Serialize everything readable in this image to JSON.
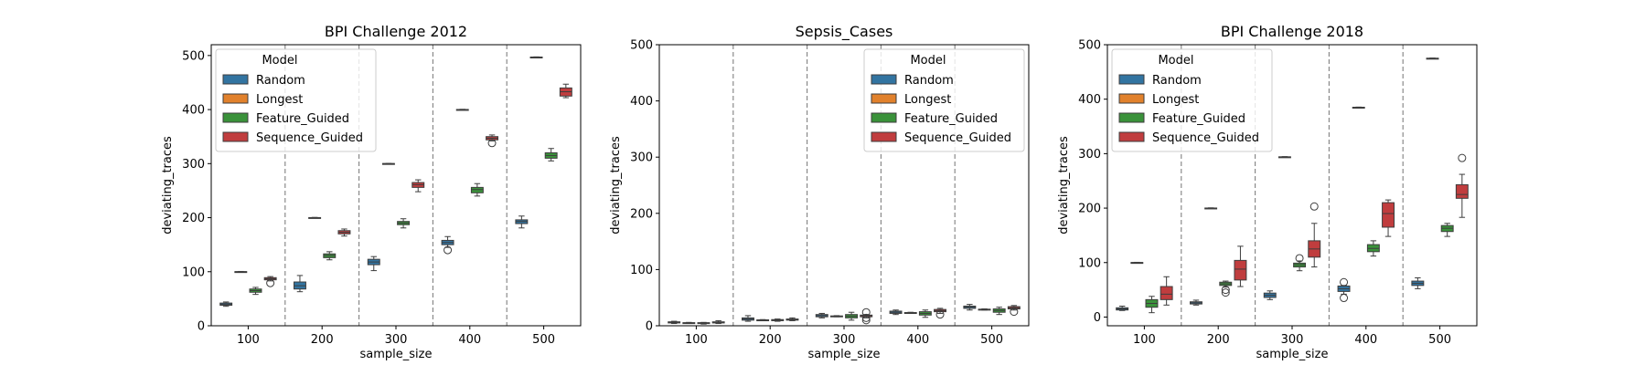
{
  "chart_data": [
    {
      "type": "boxplot",
      "title": "BPI Challenge 2012",
      "xlabel": "sample_size",
      "ylabel": "deviating_traces",
      "categories": [
        "100",
        "200",
        "300",
        "400",
        "500"
      ],
      "ylim": [
        0,
        520
      ],
      "yticks": [
        0,
        100,
        200,
        300,
        400,
        500
      ],
      "legend": {
        "title": "Model",
        "position": "upper-left"
      },
      "series": [
        {
          "name": "Random",
          "color": "#3274a1",
          "boxes": [
            {
              "whislo": 36,
              "q1": 38,
              "med": 40,
              "q3": 42,
              "whishi": 44,
              "outliers": []
            },
            {
              "whislo": 63,
              "q1": 68,
              "med": 74,
              "q3": 81,
              "whishi": 93,
              "outliers": []
            },
            {
              "whislo": 102,
              "q1": 113,
              "med": 118,
              "q3": 123,
              "whishi": 128,
              "outliers": []
            },
            {
              "whislo": 145,
              "q1": 150,
              "med": 154,
              "q3": 158,
              "whishi": 165,
              "outliers": [
                140
              ]
            },
            {
              "whislo": 181,
              "q1": 189,
              "med": 193,
              "q3": 196,
              "whishi": 203,
              "outliers": []
            }
          ]
        },
        {
          "name": "Longest",
          "color": "#e1812c",
          "boxes": [
            {
              "whislo": 99.5,
              "q1": 99.8,
              "med": 100,
              "q3": 100.2,
              "whishi": 100.5,
              "outliers": []
            },
            {
              "whislo": 199.5,
              "q1": 199.8,
              "med": 200,
              "q3": 200.2,
              "whishi": 200.5,
              "outliers": []
            },
            {
              "whislo": 299.5,
              "q1": 299.8,
              "med": 300,
              "q3": 300.2,
              "whishi": 300.5,
              "outliers": []
            },
            {
              "whislo": 399.5,
              "q1": 399.8,
              "med": 400,
              "q3": 400.2,
              "whishi": 400.5,
              "outliers": []
            },
            {
              "whislo": 496.5,
              "q1": 496.8,
              "med": 497,
              "q3": 497.2,
              "whishi": 497.5,
              "outliers": []
            }
          ]
        },
        {
          "name": "Feature_Guided",
          "color": "#3a923a",
          "boxes": [
            {
              "whislo": 58,
              "q1": 62,
              "med": 65,
              "q3": 68,
              "whishi": 71,
              "outliers": []
            },
            {
              "whislo": 122,
              "q1": 126,
              "med": 130,
              "q3": 133,
              "whishi": 137,
              "outliers": []
            },
            {
              "whislo": 181,
              "q1": 187,
              "med": 190,
              "q3": 193,
              "whishi": 198,
              "outliers": []
            },
            {
              "whislo": 240,
              "q1": 246,
              "med": 252,
              "q3": 256,
              "whishi": 263,
              "outliers": []
            },
            {
              "whislo": 305,
              "q1": 310,
              "med": 315,
              "q3": 320,
              "whishi": 328,
              "outliers": []
            }
          ]
        },
        {
          "name": "Sequence_Guided",
          "color": "#c03d3e",
          "boxes": [
            {
              "whislo": 83,
              "q1": 85,
              "med": 87,
              "q3": 89,
              "whishi": 91,
              "outliers": [
                79
              ]
            },
            {
              "whislo": 166,
              "q1": 170,
              "med": 173,
              "q3": 176,
              "whishi": 179,
              "outliers": []
            },
            {
              "whislo": 248,
              "q1": 256,
              "med": 261,
              "q3": 265,
              "whishi": 270,
              "outliers": []
            },
            {
              "whislo": 342,
              "q1": 344,
              "med": 347,
              "q3": 350,
              "whishi": 353,
              "outliers": [
                338
              ]
            },
            {
              "whislo": 422,
              "q1": 425,
              "med": 433,
              "q3": 440,
              "whishi": 447,
              "outliers": []
            }
          ]
        }
      ]
    },
    {
      "type": "boxplot",
      "title": "Sepsis_Cases",
      "xlabel": "sample_size",
      "ylabel": "deviating_traces",
      "categories": [
        "100",
        "200",
        "300",
        "400",
        "500"
      ],
      "ylim": [
        0,
        500
      ],
      "yticks": [
        0,
        100,
        200,
        300,
        400,
        500
      ],
      "legend": {
        "title": "Model",
        "position": "upper-right"
      },
      "series": [
        {
          "name": "Random",
          "color": "#3274a1",
          "boxes": [
            {
              "whislo": 4,
              "q1": 5,
              "med": 6,
              "q3": 7,
              "whishi": 8,
              "outliers": []
            },
            {
              "whislo": 8,
              "q1": 10,
              "med": 12,
              "q3": 14,
              "whishi": 18,
              "outliers": []
            },
            {
              "whislo": 14,
              "q1": 16,
              "med": 18,
              "q3": 20,
              "whishi": 22,
              "outliers": []
            },
            {
              "whislo": 20,
              "q1": 22,
              "med": 24,
              "q3": 26,
              "whishi": 28,
              "outliers": []
            },
            {
              "whislo": 28,
              "q1": 31,
              "med": 33,
              "q3": 35,
              "whishi": 38,
              "outliers": []
            }
          ]
        },
        {
          "name": "Longest",
          "color": "#e1812c",
          "boxes": [
            {
              "whislo": 4,
              "q1": 4.5,
              "med": 5,
              "q3": 5.5,
              "whishi": 6,
              "outliers": []
            },
            {
              "whislo": 9,
              "q1": 9.5,
              "med": 10,
              "q3": 10.5,
              "whishi": 11,
              "outliers": []
            },
            {
              "whislo": 16,
              "q1": 16.5,
              "med": 17,
              "q3": 17.5,
              "whishi": 18,
              "outliers": []
            },
            {
              "whislo": 22,
              "q1": 22.5,
              "med": 23,
              "q3": 23.5,
              "whishi": 24,
              "outliers": []
            },
            {
              "whislo": 28,
              "q1": 28.5,
              "med": 29,
              "q3": 29.5,
              "whishi": 30,
              "outliers": []
            }
          ]
        },
        {
          "name": "Feature_Guided",
          "color": "#3a923a",
          "boxes": [
            {
              "whislo": 3,
              "q1": 4,
              "med": 5,
              "q3": 5.5,
              "whishi": 6,
              "outliers": []
            },
            {
              "whislo": 8,
              "q1": 9,
              "med": 10,
              "q3": 11,
              "whishi": 12,
              "outliers": []
            },
            {
              "whislo": 10,
              "q1": 14,
              "med": 17,
              "q3": 20,
              "whishi": 24,
              "outliers": []
            },
            {
              "whislo": 15,
              "q1": 19,
              "med": 22,
              "q3": 25,
              "whishi": 28,
              "outliers": []
            },
            {
              "whislo": 20,
              "q1": 24,
              "med": 27,
              "q3": 30,
              "whishi": 33,
              "outliers": []
            }
          ]
        },
        {
          "name": "Sequence_Guided",
          "color": "#c03d3e",
          "boxes": [
            {
              "whislo": 4,
              "q1": 5,
              "med": 6,
              "q3": 7,
              "whishi": 9,
              "outliers": []
            },
            {
              "whislo": 9,
              "q1": 10,
              "med": 11,
              "q3": 12,
              "whishi": 14,
              "outliers": []
            },
            {
              "whislo": 14,
              "q1": 16,
              "med": 18,
              "q3": 19,
              "whishi": 20,
              "outliers": [
                10,
                14,
                24
              ]
            },
            {
              "whislo": 22,
              "q1": 25,
              "med": 27,
              "q3": 29,
              "whishi": 31,
              "outliers": [
                20
              ]
            },
            {
              "whislo": 28,
              "q1": 30,
              "med": 32,
              "q3": 34,
              "whishi": 36,
              "outliers": [
                25
              ]
            }
          ]
        }
      ]
    },
    {
      "type": "boxplot",
      "title": "BPI Challenge 2018",
      "xlabel": "sample_size",
      "ylabel": "deviating_traces",
      "categories": [
        "100",
        "200",
        "300",
        "400",
        "500"
      ],
      "ylim": [
        -16,
        500
      ],
      "yticks": [
        0,
        100,
        200,
        300,
        400,
        500
      ],
      "legend": {
        "title": "Model",
        "position": "upper-left"
      },
      "series": [
        {
          "name": "Random",
          "color": "#3274a1",
          "boxes": [
            {
              "whislo": 12,
              "q1": 13,
              "med": 15,
              "q3": 17,
              "whishi": 20,
              "outliers": []
            },
            {
              "whislo": 22,
              "q1": 24,
              "med": 26,
              "q3": 28,
              "whishi": 31,
              "outliers": []
            },
            {
              "whislo": 32,
              "q1": 36,
              "med": 40,
              "q3": 44,
              "whishi": 48,
              "outliers": []
            },
            {
              "whislo": 42,
              "q1": 47,
              "med": 52,
              "q3": 57,
              "whishi": 58,
              "outliers": [
                35,
                64
              ]
            },
            {
              "whislo": 52,
              "q1": 58,
              "med": 62,
              "q3": 66,
              "whishi": 72,
              "outliers": []
            }
          ]
        },
        {
          "name": "Longest",
          "color": "#e1812c",
          "boxes": [
            {
              "whislo": 99.5,
              "q1": 99.8,
              "med": 100,
              "q3": 100.2,
              "whishi": 100.5,
              "outliers": []
            },
            {
              "whislo": 199.5,
              "q1": 199.8,
              "med": 200,
              "q3": 200.2,
              "whishi": 200.5,
              "outliers": []
            },
            {
              "whislo": 293.5,
              "q1": 293.8,
              "med": 294,
              "q3": 294.2,
              "whishi": 294.5,
              "outliers": []
            },
            {
              "whislo": 384.5,
              "q1": 384.8,
              "med": 385,
              "q3": 385.2,
              "whishi": 385.5,
              "outliers": []
            },
            {
              "whislo": 474.5,
              "q1": 474.8,
              "med": 475,
              "q3": 475.2,
              "whishi": 475.5,
              "outliers": []
            }
          ]
        },
        {
          "name": "Feature_Guided",
          "color": "#3a923a",
          "boxes": [
            {
              "whislo": 8,
              "q1": 18,
              "med": 25,
              "q3": 32,
              "whishi": 38,
              "outliers": []
            },
            {
              "whislo": 55,
              "q1": 58,
              "med": 61,
              "q3": 64,
              "whishi": 66,
              "outliers": [
                45,
                50
              ]
            },
            {
              "whislo": 85,
              "q1": 92,
              "med": 96,
              "q3": 99,
              "whishi": 103,
              "outliers": [
                108
              ]
            },
            {
              "whislo": 112,
              "q1": 120,
              "med": 126,
              "q3": 133,
              "whishi": 140,
              "outliers": []
            },
            {
              "whislo": 148,
              "q1": 157,
              "med": 163,
              "q3": 168,
              "whishi": 172,
              "outliers": []
            }
          ]
        },
        {
          "name": "Sequence_Guided",
          "color": "#c03d3e",
          "boxes": [
            {
              "whislo": 22,
              "q1": 32,
              "med": 42,
              "q3": 56,
              "whishi": 74,
              "outliers": []
            },
            {
              "whislo": 56,
              "q1": 68,
              "med": 88,
              "q3": 104,
              "whishi": 130,
              "outliers": []
            },
            {
              "whislo": 92,
              "q1": 110,
              "med": 125,
              "q3": 140,
              "whishi": 172,
              "outliers": [
                203
              ]
            },
            {
              "whislo": 148,
              "q1": 165,
              "med": 190,
              "q3": 210,
              "whishi": 215,
              "outliers": []
            },
            {
              "whislo": 183,
              "q1": 218,
              "med": 225,
              "q3": 243,
              "whishi": 262,
              "outliers": [
                292
              ]
            }
          ]
        }
      ]
    }
  ]
}
